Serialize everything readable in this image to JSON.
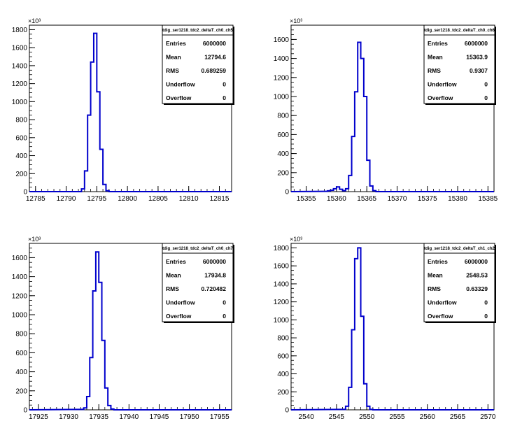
{
  "chart_data": [
    {
      "type": "histogram",
      "title": "tdig_ser1218_tdc2_deltaT_ch0_ch5",
      "y_multiplier": "×10³",
      "xlim": [
        12784,
        12817
      ],
      "ylim": [
        0,
        1850
      ],
      "x_ticks": [
        12785,
        12790,
        12795,
        12800,
        12805,
        12810,
        12815
      ],
      "y_ticks": [
        0,
        200,
        400,
        600,
        800,
        1000,
        1200,
        1400,
        1600,
        1800
      ],
      "bin_width": 0.5,
      "bins": [
        {
          "x": 12792.0,
          "y": 0
        },
        {
          "x": 12792.5,
          "y": 30
        },
        {
          "x": 12793.0,
          "y": 230
        },
        {
          "x": 12793.5,
          "y": 850
        },
        {
          "x": 12794.0,
          "y": 1440
        },
        {
          "x": 12794.5,
          "y": 1760
        },
        {
          "x": 12795.0,
          "y": 1110
        },
        {
          "x": 12795.5,
          "y": 470
        },
        {
          "x": 12796.0,
          "y": 80
        },
        {
          "x": 12796.5,
          "y": 10
        }
      ],
      "stats": [
        {
          "label": "Entries",
          "value": "6000000"
        },
        {
          "label": "Mean",
          "value": "12794.6"
        },
        {
          "label": "RMS",
          "value": "0.689259"
        },
        {
          "label": "Underflow",
          "value": "0"
        },
        {
          "label": "Overflow",
          "value": "0"
        }
      ],
      "line_color": "#0000cc"
    },
    {
      "type": "histogram",
      "title": "tdig_ser1218_tdc2_deltaT_ch0_ch6",
      "y_multiplier": "×10³",
      "xlim": [
        15352.5,
        15386
      ],
      "ylim": [
        0,
        1750
      ],
      "x_ticks": [
        15355,
        15360,
        15365,
        15370,
        15375,
        15380,
        15385
      ],
      "y_ticks": [
        0,
        200,
        400,
        600,
        800,
        1000,
        1200,
        1400,
        1600
      ],
      "bin_width": 0.5,
      "bins": [
        {
          "x": 15358.0,
          "y": 3
        },
        {
          "x": 15358.5,
          "y": 8
        },
        {
          "x": 15359.0,
          "y": 15
        },
        {
          "x": 15359.5,
          "y": 30
        },
        {
          "x": 15360.0,
          "y": 50
        },
        {
          "x": 15360.5,
          "y": 25
        },
        {
          "x": 15361.0,
          "y": 10
        },
        {
          "x": 15361.5,
          "y": 30
        },
        {
          "x": 15362.0,
          "y": 170
        },
        {
          "x": 15362.5,
          "y": 580
        },
        {
          "x": 15363.0,
          "y": 1050
        },
        {
          "x": 15363.5,
          "y": 1570
        },
        {
          "x": 15364.0,
          "y": 1400
        },
        {
          "x": 15364.5,
          "y": 1000
        },
        {
          "x": 15365.0,
          "y": 330
        },
        {
          "x": 15365.5,
          "y": 60
        },
        {
          "x": 15366.0,
          "y": 10
        }
      ],
      "stats": [
        {
          "label": "Entries",
          "value": "6000000"
        },
        {
          "label": "Mean",
          "value": "15363.9"
        },
        {
          "label": "RMS",
          "value": "0.9307"
        },
        {
          "label": "Underflow",
          "value": "0"
        },
        {
          "label": "Overflow",
          "value": "0"
        }
      ],
      "line_color": "#0000cc"
    },
    {
      "type": "histogram",
      "title": "tdig_ser1218_tdc2_deltaT_ch0_ch7",
      "y_multiplier": "×10³",
      "xlim": [
        17923.5,
        17957
      ],
      "ylim": [
        0,
        1750
      ],
      "x_ticks": [
        17925,
        17930,
        17935,
        17940,
        17945,
        17950,
        17955
      ],
      "y_ticks": [
        0,
        200,
        400,
        600,
        800,
        1000,
        1200,
        1400,
        1600
      ],
      "bin_width": 0.5,
      "bins": [
        {
          "x": 17932.0,
          "y": 5
        },
        {
          "x": 17932.5,
          "y": 20
        },
        {
          "x": 17933.0,
          "y": 140
        },
        {
          "x": 17933.5,
          "y": 550
        },
        {
          "x": 17934.0,
          "y": 1250
        },
        {
          "x": 17934.5,
          "y": 1660
        },
        {
          "x": 17935.0,
          "y": 1340
        },
        {
          "x": 17935.5,
          "y": 730
        },
        {
          "x": 17936.0,
          "y": 230
        },
        {
          "x": 17936.5,
          "y": 45
        },
        {
          "x": 17937.0,
          "y": 8
        }
      ],
      "stats": [
        {
          "label": "Entries",
          "value": "6000000"
        },
        {
          "label": "Mean",
          "value": "17934.8"
        },
        {
          "label": "RMS",
          "value": "0.720482"
        },
        {
          "label": "Underflow",
          "value": "0"
        },
        {
          "label": "Overflow",
          "value": "0"
        }
      ],
      "line_color": "#0000cc"
    },
    {
      "type": "histogram",
      "title": "tdig_ser1218_tdc2_deltaT_ch1_ch2",
      "y_multiplier": "×10³",
      "xlim": [
        2537.5,
        2571
      ],
      "ylim": [
        0,
        1850
      ],
      "x_ticks": [
        2540,
        2545,
        2550,
        2555,
        2560,
        2565,
        2570
      ],
      "y_ticks": [
        0,
        200,
        400,
        600,
        800,
        1000,
        1200,
        1400,
        1600,
        1800
      ],
      "bin_width": 0.5,
      "bins": [
        {
          "x": 2546.0,
          "y": 5
        },
        {
          "x": 2546.5,
          "y": 40
        },
        {
          "x": 2547.0,
          "y": 250
        },
        {
          "x": 2547.5,
          "y": 890
        },
        {
          "x": 2548.0,
          "y": 1680
        },
        {
          "x": 2548.5,
          "y": 1800
        },
        {
          "x": 2549.0,
          "y": 1040
        },
        {
          "x": 2549.5,
          "y": 290
        },
        {
          "x": 2550.0,
          "y": 40
        },
        {
          "x": 2550.5,
          "y": 5
        }
      ],
      "stats": [
        {
          "label": "Entries",
          "value": "6000000"
        },
        {
          "label": "Mean",
          "value": "2548.53"
        },
        {
          "label": "RMS",
          "value": "0.63329"
        },
        {
          "label": "Underflow",
          "value": "0"
        },
        {
          "label": "Overflow",
          "value": "0"
        }
      ],
      "line_color": "#0000cc"
    }
  ]
}
